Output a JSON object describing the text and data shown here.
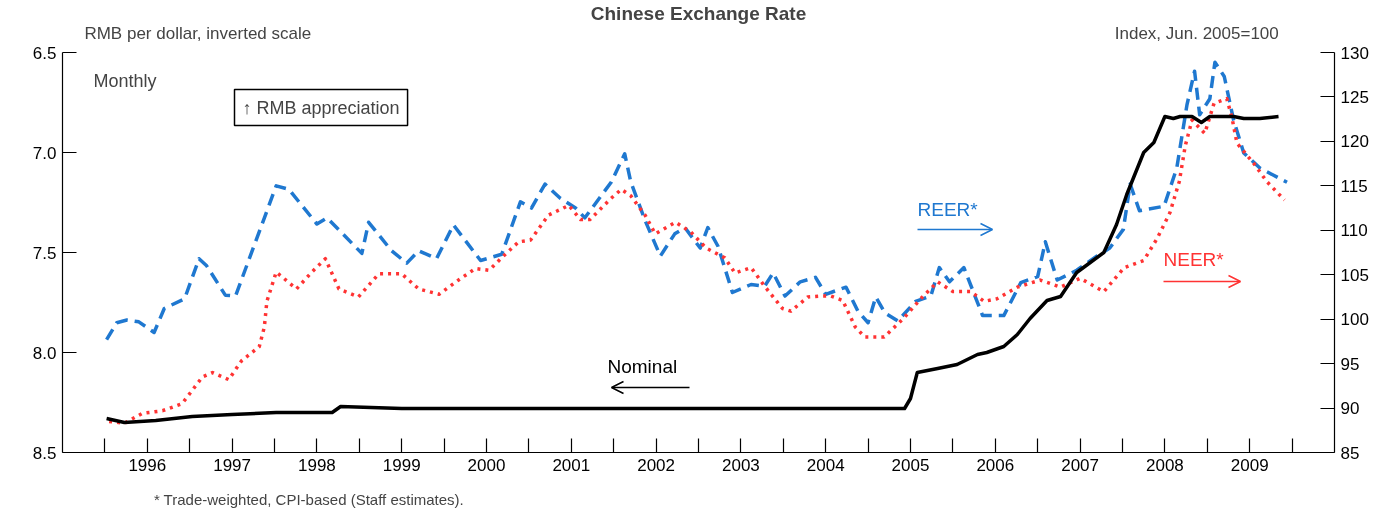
{
  "chart_data": {
    "type": "line",
    "title": "Chinese Exchange Rate",
    "ylabel": "RMB per dollar, inverted scale",
    "y2label": "Index, Jun. 2005=100",
    "xlim": [
      1995.5,
      2010.5
    ],
    "xticks": [
      {
        "value": 1996,
        "label": null
      },
      {
        "value": 1996.5,
        "label": "1996"
      },
      {
        "value": 1997,
        "label": null
      },
      {
        "value": 1997.5,
        "label": "1997"
      },
      {
        "value": 1998,
        "label": null
      },
      {
        "value": 1998.5,
        "label": "1998"
      },
      {
        "value": 1999,
        "label": null
      },
      {
        "value": 1999.5,
        "label": "1999"
      },
      {
        "value": 2000,
        "label": null
      },
      {
        "value": 2000.5,
        "label": "2000"
      },
      {
        "value": 2001,
        "label": null
      },
      {
        "value": 2001.5,
        "label": "2001"
      },
      {
        "value": 2002,
        "label": null
      },
      {
        "value": 2002.5,
        "label": "2002"
      },
      {
        "value": 2003,
        "label": null
      },
      {
        "value": 2003.5,
        "label": "2003"
      },
      {
        "value": 2004,
        "label": null
      },
      {
        "value": 2004.5,
        "label": "2004"
      },
      {
        "value": 2005,
        "label": null
      },
      {
        "value": 2005.5,
        "label": "2005"
      },
      {
        "value": 2006,
        "label": null
      },
      {
        "value": 2006.5,
        "label": "2006"
      },
      {
        "value": 2007,
        "label": null
      },
      {
        "value": 2007.5,
        "label": "2007"
      },
      {
        "value": 2008,
        "label": null
      },
      {
        "value": 2008.5,
        "label": "2008"
      },
      {
        "value": 2009,
        "label": null
      },
      {
        "value": 2009.5,
        "label": "2009"
      },
      {
        "value": 2010,
        "label": null
      }
    ],
    "ylim": [
      8.5,
      6.5
    ],
    "yticks": [
      6.5,
      {
        "value": 7,
        "label": "7.0"
      },
      7.5,
      {
        "value": 8,
        "label": "8.0"
      },
      8.5
    ],
    "y2lim": [
      85,
      130
    ],
    "y2ticks": [
      85,
      90,
      95,
      100,
      105,
      110,
      115,
      120,
      125,
      130
    ],
    "grid": false,
    "legend": false,
    "annotations": [
      "Monthly",
      "↑ RMB appreciation",
      "* Trade-weighted, CPI-based (Staff estimates)."
    ],
    "series": [
      {
        "name": "REER*",
        "color": "#1f78d0",
        "axis": "y2",
        "line_style": "dashed",
        "x": [
          1996.02,
          1996.14,
          1996.26,
          1996.4,
          1996.58,
          1996.7,
          1996.94,
          1997.11,
          1997.2,
          1997.42,
          1997.54,
          1998.02,
          1998.17,
          1998.5,
          1998.62,
          1999.03,
          1999.11,
          1999.38,
          1999.56,
          1999.7,
          1999.91,
          2000.11,
          2000.43,
          2000.68,
          2000.9,
          2001.03,
          2001.19,
          2001.37,
          2001.55,
          2001.66,
          2001.97,
          2002.13,
          2002.2,
          2002.37,
          2002.55,
          2002.72,
          2002.84,
          2003.02,
          2003.11,
          2003.23,
          2003.4,
          2003.62,
          2003.78,
          2003.88,
          2004.02,
          2004.2,
          2004.38,
          2004.5,
          2004.74,
          2004.88,
          2005.0,
          2005.09,
          2005.2,
          2005.35,
          2005.56,
          2005.74,
          2005.84,
          2005.96,
          2006.13,
          2006.35,
          2006.6,
          2006.8,
          2007.0,
          2007.09,
          2007.23,
          2007.46,
          2007.7,
          2007.85,
          2008.01,
          2008.09,
          2008.2,
          2008.49,
          2008.64,
          2008.76,
          2008.85,
          2008.91,
          2009.03,
          2009.09,
          2009.2,
          2009.31,
          2009.43,
          2009.62,
          2009.94
        ],
        "values": [
          97.7,
          99.6,
          99.9,
          99.7,
          98.5,
          101.2,
          102.3,
          106.8,
          106.0,
          102.7,
          102.6,
          115.0,
          114.6,
          110.7,
          111.4,
          107.4,
          110.9,
          107.7,
          106.3,
          107.7,
          106.8,
          110.6,
          106.6,
          107.3,
          113.2,
          112.5,
          115.2,
          113.6,
          112.5,
          111.4,
          115.4,
          118.6,
          115.5,
          111.1,
          107.1,
          109.6,
          110.3,
          108.0,
          110.3,
          108.2,
          103.0,
          103.9,
          103.7,
          105.2,
          102.6,
          104.2,
          104.7,
          102.8,
          103.6,
          100.9,
          99.6,
          102.5,
          100.7,
          99.8,
          102.0,
          102.6,
          105.8,
          104.2,
          105.8,
          100.4,
          100.4,
          104.1,
          104.8,
          108.7,
          104.4,
          105.5,
          107.1,
          108.0,
          110.1,
          115.2,
          112.2,
          112.7,
          117.0,
          124.1,
          127.9,
          123.0,
          124.8,
          128.9,
          127.3,
          122.4,
          118.7,
          117.0,
          115.4
        ]
      },
      {
        "name": "NEER*",
        "color": "#ff3333",
        "axis": "y2",
        "line_style": "dotted",
        "x": [
          1996.05,
          1996.23,
          1996.44,
          1996.68,
          1996.91,
          1997.15,
          1997.27,
          1997.46,
          1997.61,
          1997.82,
          1997.88,
          1997.91,
          1998.02,
          1998.26,
          1998.44,
          1998.6,
          1998.76,
          1998.99,
          1999.23,
          1999.5,
          1999.7,
          1999.94,
          2000.17,
          2000.37,
          2000.53,
          2000.7,
          2000.88,
          2001.02,
          2001.23,
          2001.47,
          2001.61,
          2001.72,
          2001.97,
          2002.09,
          2002.2,
          2002.37,
          2002.49,
          2002.73,
          2002.91,
          2003.09,
          2003.31,
          2003.43,
          2003.62,
          2003.78,
          2003.99,
          2004.09,
          2004.29,
          2004.44,
          2004.56,
          2004.7,
          2004.85,
          2004.96,
          2005.19,
          2005.42,
          2005.62,
          2005.82,
          2006.0,
          2006.21,
          2006.37,
          2006.52,
          2006.76,
          2007.03,
          2007.27,
          2007.5,
          2007.78,
          2008.02,
          2008.25,
          2008.41,
          2008.56,
          2008.67,
          2008.74,
          2008.82,
          2008.97,
          2009.08,
          2009.23,
          2009.29,
          2009.35,
          2009.55,
          2009.7,
          2009.91
        ],
        "values": [
          88.5,
          88.3,
          89.4,
          89.7,
          90.5,
          93.5,
          94.0,
          93.2,
          95.3,
          96.9,
          99.1,
          102.0,
          105.3,
          103.4,
          105.3,
          106.8,
          103.4,
          102.5,
          105.1,
          105.1,
          103.4,
          102.8,
          104.4,
          105.7,
          105.5,
          107.1,
          108.7,
          108.9,
          111.7,
          112.8,
          111.2,
          111.2,
          113.6,
          114.6,
          113.9,
          111.7,
          109.6,
          110.9,
          109.8,
          108.0,
          106.9,
          105.2,
          105.8,
          103.7,
          101.2,
          100.9,
          102.5,
          102.6,
          102.6,
          102.1,
          99.1,
          98.0,
          98.0,
          100.1,
          102.3,
          104.2,
          103.1,
          103.1,
          102.0,
          102.3,
          103.6,
          104.4,
          103.6,
          104.6,
          103.1,
          105.8,
          106.6,
          109.1,
          112.0,
          115.5,
          119.5,
          122.4,
          120.9,
          124.3,
          124.8,
          122.7,
          119.8,
          117.5,
          115.5,
          113.4
        ]
      },
      {
        "name": "Nominal",
        "color": "#000000",
        "axis": "y",
        "line_style": "solid",
        "x": [
          1996.02,
          1996.23,
          1996.6,
          1997.03,
          1997.5,
          1998.02,
          1998.68,
          1998.78,
          1999.5,
          2000.5,
          2001.5,
          2002.5,
          2003.5,
          2004.5,
          2005.43,
          2005.5,
          2005.58,
          2005.82,
          2006.05,
          2006.29,
          2006.4,
          2006.6,
          2006.76,
          2006.91,
          2007.11,
          2007.27,
          2007.46,
          2007.62,
          2007.78,
          2007.93,
          2008.05,
          2008.25,
          2008.37,
          2008.5,
          2008.6,
          2008.68,
          2008.82,
          2008.93,
          2009.03,
          2009.31,
          2009.43,
          2009.62,
          2009.84
        ],
        "values": [
          8.33,
          8.35,
          8.34,
          8.32,
          8.31,
          8.3,
          8.3,
          8.27,
          8.28,
          8.28,
          8.28,
          8.28,
          8.28,
          8.28,
          8.28,
          8.23,
          8.1,
          8.08,
          8.06,
          8.01,
          8.0,
          7.97,
          7.91,
          7.83,
          7.74,
          7.72,
          7.6,
          7.55,
          7.5,
          7.36,
          7.21,
          7.0,
          6.95,
          6.82,
          6.83,
          6.82,
          6.82,
          6.85,
          6.82,
          6.82,
          6.83,
          6.83,
          6.82
        ]
      }
    ]
  }
}
